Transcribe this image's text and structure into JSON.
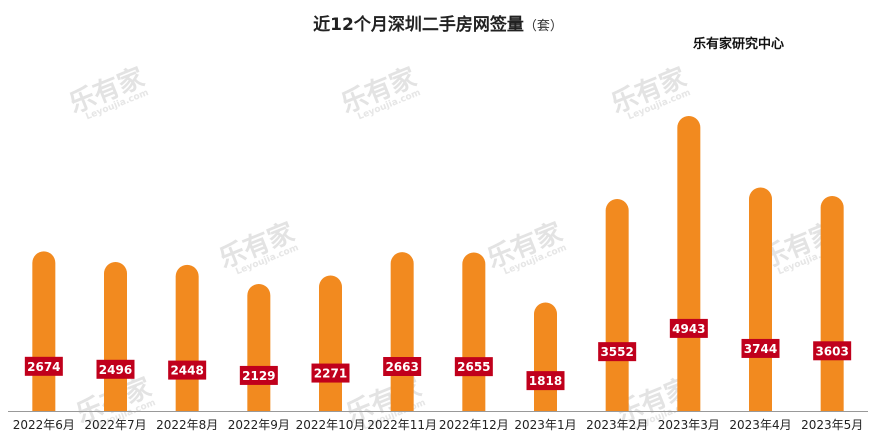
{
  "header": {
    "title": "近12个月深圳二手房网签量",
    "unit": "（套）",
    "source": "乐有家研究中心"
  },
  "watermark": {
    "text": "乐有家",
    "sub": "Leyoujia.com"
  },
  "colors": {
    "bar": "#F28A1F",
    "label_bg": "#C0001C",
    "label_text": "#FFFFFF",
    "axis": "#999999"
  },
  "chart_data": {
    "type": "bar",
    "title": "近12个月深圳二手房网签量（套）",
    "categories": [
      "2022年6月",
      "2022年7月",
      "2022年8月",
      "2022年9月",
      "2022年10月",
      "2022年11月",
      "2022年12月",
      "2023年1月",
      "2023年2月",
      "2023年3月",
      "2023年4月",
      "2023年5月"
    ],
    "values": [
      2674,
      2496,
      2448,
      2129,
      2271,
      2663,
      2655,
      1818,
      3552,
      4943,
      3744,
      3603
    ],
    "xlabel": "",
    "ylabel": "",
    "ylim": [
      0,
      5200
    ],
    "grid": false,
    "data_labels": true
  }
}
